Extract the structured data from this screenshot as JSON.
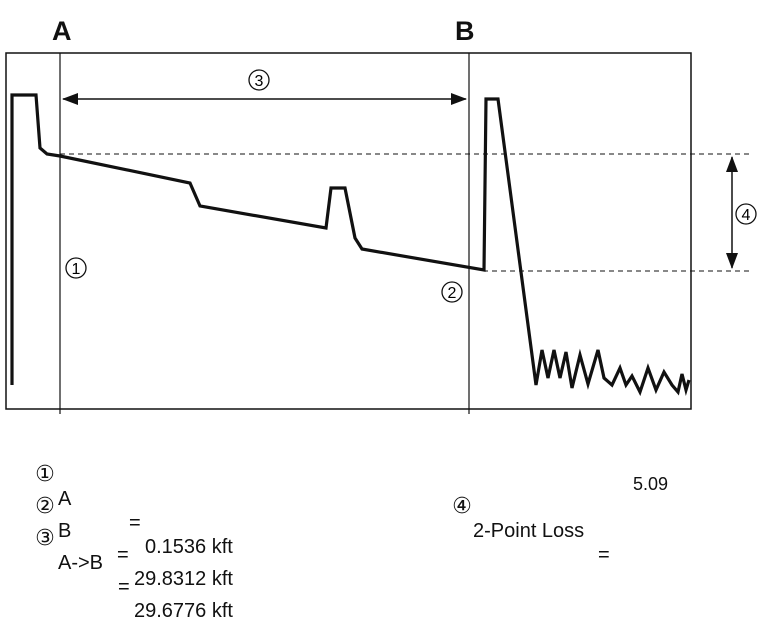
{
  "cursors": {
    "a_label": "A",
    "b_label": "B"
  },
  "markers": {
    "m1": "①",
    "m2": "②",
    "m3": "③",
    "m4": "④"
  },
  "legend": {
    "a": {
      "marker": "①",
      "name": "A",
      "sep": "=",
      "value": "0.1536 kft"
    },
    "b": {
      "marker": "②",
      "name": "B",
      "sep": "=",
      "value": "29.8312 kft"
    },
    "ab": {
      "marker": "③",
      "name": "A->B",
      "sep": "=",
      "value": "29.6776 kft"
    },
    "loss": {
      "marker": "④",
      "name": "2-Point Loss",
      "sep": "=",
      "value": "5.09"
    }
  }
}
